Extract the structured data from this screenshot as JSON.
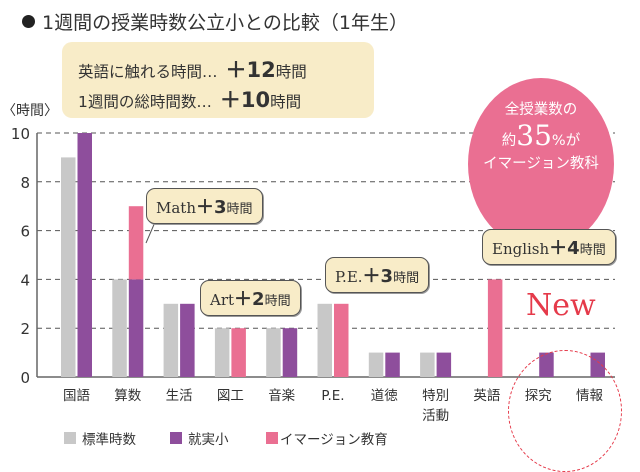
{
  "title": "1週間の授業時数公立小との比較（1年生）",
  "summary": {
    "line1_label": "英語に触れる時間…",
    "line1_value": "＋12",
    "line1_unit": "時間",
    "line2_label": "1週間の総時間数…",
    "line2_value": "＋10",
    "line2_unit": "時間"
  },
  "badge": {
    "line1": "全授業数の",
    "prefix": "約",
    "value": "35",
    "percent": "%",
    "suffix": "が",
    "line3": "イマージョン教科"
  },
  "callouts": [
    {
      "subject": "Math",
      "plus": "＋3",
      "unit": "時間"
    },
    {
      "subject": "Art",
      "plus": "＋2",
      "unit": "時間"
    },
    {
      "subject": "P.E.",
      "plus": "＋3",
      "unit": "時間"
    },
    {
      "subject": "English",
      "plus": "＋4",
      "unit": "時間"
    }
  ],
  "new_label": "New",
  "colors": {
    "standard": "#c8c8c8",
    "school": "#8e4e9c",
    "immersion": "#ea6f92",
    "new": "#e53a4a",
    "callout_bg": "#f8ecc8"
  },
  "chart_data": {
    "type": "bar",
    "ylabel": "〈時間〉",
    "ylim": [
      0,
      10
    ],
    "yticks": [
      0,
      2,
      4,
      6,
      8,
      10
    ],
    "grid": "dashed horizontal",
    "legend_position": "bottom",
    "categories": [
      "国語",
      "算数",
      "生活",
      "図工",
      "音楽",
      "P.E.",
      "道徳",
      "特別\n活動",
      "英語",
      "探究",
      "情報"
    ],
    "series": [
      {
        "name": "標準時数",
        "values": [
          9,
          4,
          3,
          2,
          2,
          3,
          1,
          1,
          0,
          0,
          0
        ]
      },
      {
        "name": "就実小",
        "values": [
          10,
          4,
          3,
          0,
          2,
          0,
          1,
          1,
          0,
          1,
          1
        ]
      },
      {
        "name": "イマージョン教育",
        "values": [
          0,
          3,
          0,
          2,
          0,
          3,
          0,
          0,
          4,
          0,
          0
        ],
        "stacked_on": "就実小"
      }
    ]
  }
}
